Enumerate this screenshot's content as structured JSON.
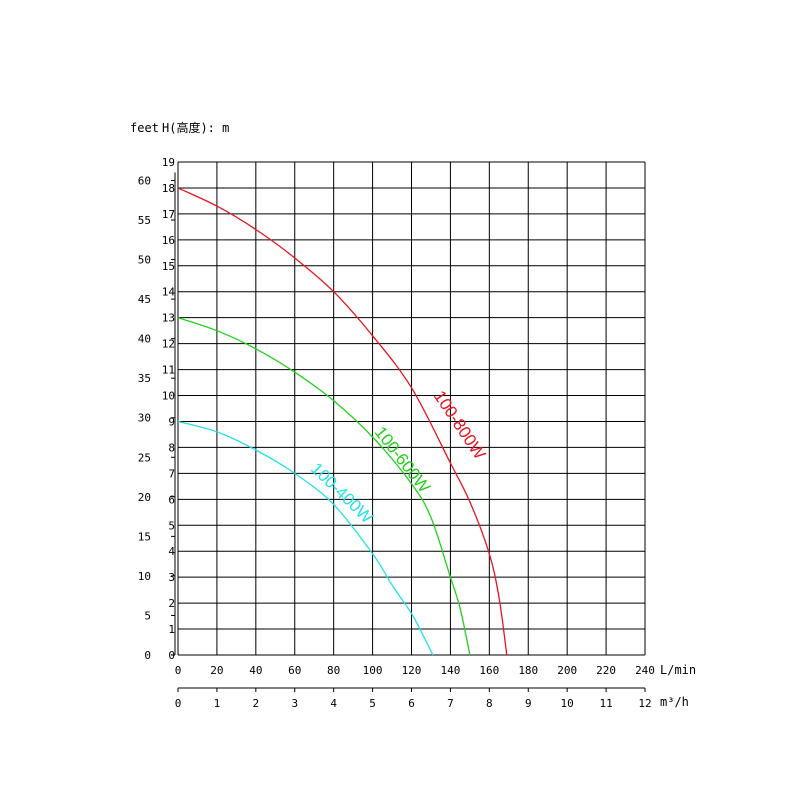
{
  "chart_data": {
    "type": "line",
    "header_feet": "feet",
    "header_h": "H(高度): m",
    "x_unit_flow_lmin": "L/min",
    "x_unit_flow_m3h": "m³/h",
    "xlim_lmin": [
      0,
      240
    ],
    "xticks_lmin": [
      0,
      20,
      40,
      60,
      80,
      100,
      120,
      140,
      160,
      180,
      200,
      220,
      240
    ],
    "xlim_m3h": [
      0,
      12
    ],
    "xticks_m3h": [
      0,
      1,
      2,
      3,
      4,
      5,
      6,
      7,
      8,
      9,
      10,
      11,
      12
    ],
    "ylim_m": [
      0,
      19
    ],
    "yticks_m": [
      0,
      1,
      2,
      3,
      4,
      5,
      6,
      7,
      8,
      9,
      10,
      11,
      12,
      13,
      14,
      15,
      16,
      17,
      18,
      19
    ],
    "yticks_feet": [
      0,
      5,
      10,
      15,
      20,
      25,
      30,
      35,
      40,
      45,
      50,
      55,
      60
    ],
    "grid": true,
    "series": [
      {
        "name": "100-800W",
        "color": "#e8141e",
        "x_lmin": [
          0,
          20,
          40,
          60,
          80,
          100,
          120,
          140,
          150,
          160,
          165,
          169
        ],
        "y_m": [
          18,
          17.3,
          16.4,
          15.3,
          14,
          12.3,
          10.3,
          7.4,
          5.9,
          3.9,
          2.2,
          0
        ]
      },
      {
        "name": "100-600W",
        "color": "#22d11e",
        "x_lmin": [
          0,
          20,
          40,
          60,
          80,
          100,
          120,
          130,
          140,
          145,
          150
        ],
        "y_m": [
          13,
          12.5,
          11.8,
          10.9,
          9.8,
          8.4,
          6.6,
          5.3,
          3,
          1.8,
          0
        ]
      },
      {
        "name": "100-400W",
        "color": "#22e1ea",
        "x_lmin": [
          0,
          20,
          40,
          60,
          80,
          100,
          110,
          120,
          125,
          131
        ],
        "y_m": [
          9,
          8.6,
          7.9,
          7,
          5.8,
          3.9,
          2.7,
          1.6,
          0.9,
          0
        ]
      }
    ]
  }
}
